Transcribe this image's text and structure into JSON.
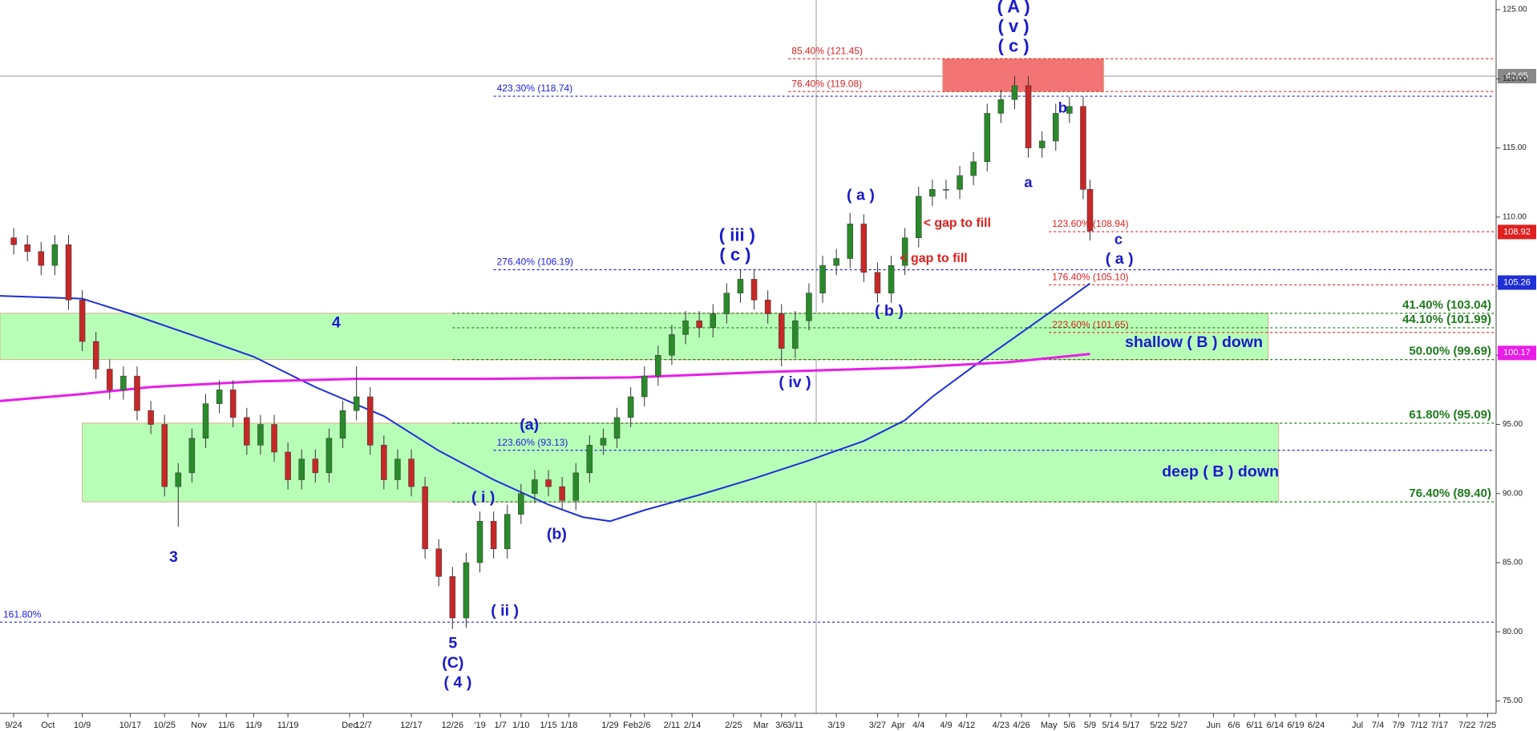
{
  "chart_data": {
    "type": "candlestick",
    "xlim": [
      -2,
      216
    ],
    "ylim": [
      74.1,
      125.7
    ],
    "yticks": [
      {
        "value": 75,
        "label": "75.00"
      },
      {
        "value": 80,
        "label": "80.00"
      },
      {
        "value": 85,
        "label": "85.00"
      },
      {
        "value": 90,
        "label": "90.00"
      },
      {
        "value": 95,
        "label": "95.00"
      },
      {
        "value": 100,
        "label": "100.00"
      },
      {
        "value": 105,
        "label": "105.00"
      },
      {
        "value": 110,
        "label": "110.00"
      },
      {
        "value": 115,
        "label": "115.00"
      },
      {
        "value": 120,
        "label": "120.00"
      },
      {
        "value": 125,
        "label": "125.00"
      }
    ],
    "xticks": [
      {
        "value": 0,
        "label": "9/24"
      },
      {
        "value": 5,
        "label": "Oct"
      },
      {
        "value": 10,
        "label": "10/9"
      },
      {
        "value": 17,
        "label": "10/17"
      },
      {
        "value": 22,
        "label": "10/25"
      },
      {
        "value": 27,
        "label": "Nov"
      },
      {
        "value": 31,
        "label": "11/6"
      },
      {
        "value": 35,
        "label": "11/9"
      },
      {
        "value": 40,
        "label": "11/19"
      },
      {
        "value": 49,
        "label": "Dec"
      },
      {
        "value": 51,
        "label": "12/7"
      },
      {
        "value": 58,
        "label": "12/17"
      },
      {
        "value": 64,
        "label": "12/26"
      },
      {
        "value": 68,
        "label": "'19"
      },
      {
        "value": 71,
        "label": "1/7"
      },
      {
        "value": 74,
        "label": "1/10"
      },
      {
        "value": 78,
        "label": "1/15"
      },
      {
        "value": 81,
        "label": "1/18"
      },
      {
        "value": 87,
        "label": "1/29"
      },
      {
        "value": 90,
        "label": "Feb"
      },
      {
        "value": 92,
        "label": "2/6"
      },
      {
        "value": 96,
        "label": "2/11"
      },
      {
        "value": 99,
        "label": "2/14"
      },
      {
        "value": 105,
        "label": "2/25"
      },
      {
        "value": 109,
        "label": "Mar"
      },
      {
        "value": 112,
        "label": "3/6"
      },
      {
        "value": 114,
        "label": "3/11"
      },
      {
        "value": 120,
        "label": "3/19"
      },
      {
        "value": 126,
        "label": "3/27"
      },
      {
        "value": 129,
        "label": "Apr"
      },
      {
        "value": 132,
        "label": "4/4"
      },
      {
        "value": 136,
        "label": "4/9"
      },
      {
        "value": 139,
        "label": "4/12"
      },
      {
        "value": 144,
        "label": "4/23"
      },
      {
        "value": 147,
        "label": "4/26"
      },
      {
        "value": 151,
        "label": "May"
      },
      {
        "value": 154,
        "label": "5/6"
      },
      {
        "value": 157,
        "label": "5/9"
      },
      {
        "value": 160,
        "label": "5/14"
      },
      {
        "value": 163,
        "label": "5/17"
      },
      {
        "value": 167,
        "label": "5/22"
      },
      {
        "value": 170,
        "label": "5/27"
      },
      {
        "value": 175,
        "label": "Jun"
      },
      {
        "value": 178,
        "label": "6/6"
      },
      {
        "value": 181,
        "label": "6/11"
      },
      {
        "value": 184,
        "label": "6/14"
      },
      {
        "value": 187,
        "label": "6/19"
      },
      {
        "value": 190,
        "label": "6/24"
      },
      {
        "value": 196,
        "label": "Jul"
      },
      {
        "value": 199,
        "label": "7/4"
      },
      {
        "value": 202,
        "label": "7/9"
      },
      {
        "value": 205,
        "label": "7/12"
      },
      {
        "value": 208,
        "label": "7/17"
      },
      {
        "value": 212,
        "label": "7/22"
      },
      {
        "value": 215,
        "label": "7/25"
      }
    ],
    "up_color": "#2a8a2a",
    "down_color": "#c62828",
    "candles": {
      "x": [
        0,
        2,
        4,
        6,
        8,
        10,
        12,
        14,
        16,
        18,
        20,
        22,
        24,
        26,
        28,
        30,
        32,
        34,
        36,
        38,
        40,
        42,
        44,
        46,
        48,
        50,
        52,
        54,
        56,
        58,
        60,
        62,
        64,
        66,
        68,
        70,
        72,
        74,
        76,
        78,
        80,
        82,
        84,
        86,
        88,
        90,
        92,
        94,
        96,
        98,
        100,
        102,
        104,
        106,
        108,
        110,
        112,
        114,
        116,
        118,
        120,
        122,
        124,
        126,
        128,
        130,
        132,
        134,
        136,
        138,
        140,
        142,
        144,
        146,
        148,
        150,
        152,
        154,
        156,
        157
      ],
      "open": [
        108.5,
        108,
        107.5,
        106.5,
        108,
        104,
        101,
        99,
        97.5,
        98.5,
        96,
        95,
        90.5,
        91.5,
        94,
        96.5,
        97.5,
        95.5,
        93.5,
        95,
        93,
        91,
        92.5,
        91.5,
        94,
        96,
        97,
        93.5,
        91,
        92.5,
        90.5,
        86,
        84,
        81,
        85,
        88,
        86,
        88.5,
        90,
        91,
        90.5,
        89.5,
        91.5,
        93.5,
        94,
        95.5,
        97,
        98.5,
        100,
        101.5,
        102.5,
        102,
        103,
        104.5,
        105.5,
        104,
        103,
        100.5,
        102.5,
        104.5,
        106.5,
        107,
        109.5,
        106,
        104.5,
        106.5,
        108.5,
        111.5,
        112,
        112,
        113,
        114,
        117.5,
        118.5,
        119.5,
        115,
        115.5,
        117.5,
        118,
        112
      ],
      "high": [
        109.2,
        108.7,
        108.2,
        108.7,
        108.7,
        104.7,
        101.7,
        99.7,
        99.2,
        99.2,
        96.7,
        95.7,
        92.2,
        94.7,
        97.2,
        98.2,
        98.2,
        96.2,
        95.7,
        95.7,
        93.7,
        93.2,
        93.2,
        94.7,
        96.7,
        99.2,
        97.7,
        94.2,
        93.2,
        93.2,
        91.2,
        86.7,
        84.7,
        85.7,
        88.7,
        88.7,
        89.2,
        90.7,
        91.7,
        91.7,
        91.2,
        92.2,
        94.2,
        94.7,
        96.2,
        97.7,
        99.2,
        100.7,
        102.2,
        103.2,
        103.2,
        103.7,
        105.2,
        106.2,
        106.2,
        104.7,
        103.7,
        103.2,
        105.2,
        107.2,
        107.7,
        110.3,
        110.2,
        106.7,
        107.2,
        109.2,
        112.2,
        112.7,
        112.7,
        113.7,
        114.7,
        118.2,
        119.2,
        120.2,
        120.2,
        116.2,
        118.2,
        118.7,
        118.7,
        112.7
      ],
      "low": [
        107.3,
        106.8,
        105.8,
        105.8,
        103.3,
        100.3,
        98.3,
        96.8,
        96.8,
        95.3,
        94.3,
        89.8,
        87.6,
        90.8,
        93.3,
        95.8,
        94.8,
        92.8,
        92.8,
        92.3,
        90.3,
        90.3,
        90.8,
        90.8,
        93.3,
        95.3,
        92.8,
        90.3,
        90.3,
        89.8,
        85.3,
        83.3,
        80.2,
        80.3,
        84.3,
        85.3,
        85.3,
        87.8,
        89.3,
        89.8,
        88.8,
        88.8,
        90.8,
        92.8,
        93.3,
        94.8,
        96.3,
        97.8,
        99.3,
        100.8,
        101.3,
        101.3,
        102.3,
        103.8,
        103.3,
        102.3,
        99.2,
        99.8,
        101.8,
        103.8,
        105.8,
        106.3,
        105.3,
        103.8,
        103.8,
        105.8,
        107.8,
        110.8,
        111.3,
        111.3,
        112.3,
        113.3,
        116.8,
        117.8,
        114.3,
        114.3,
        114.8,
        116.8,
        111.3,
        108.3
      ],
      "close": [
        108,
        107.5,
        106.5,
        108,
        104,
        101,
        99,
        97.5,
        98.5,
        96,
        95,
        90.5,
        91.5,
        94,
        96.5,
        97.5,
        95.5,
        93.5,
        95,
        93,
        91,
        92.5,
        91.5,
        94,
        96,
        97,
        93.5,
        91,
        92.5,
        90.5,
        86,
        84,
        81,
        85,
        88,
        86,
        88.5,
        90,
        91,
        90.5,
        89.5,
        91.5,
        93.5,
        94,
        95.5,
        97,
        98.5,
        100,
        101.5,
        102.5,
        102,
        103,
        104.5,
        105.5,
        104,
        103,
        100.5,
        102.5,
        104.5,
        106.5,
        107,
        109.5,
        106,
        104.5,
        106.5,
        108.5,
        111.5,
        112,
        112,
        113,
        114,
        117.5,
        118.5,
        119.5,
        115,
        115.5,
        117.5,
        118,
        112,
        109
      ]
    },
    "lines": [
      {
        "color": "#1f2fd6",
        "x": [
          -2,
          10,
          17,
          27,
          35,
          44,
          54,
          62,
          70,
          78,
          83,
          87,
          92,
          100,
          108,
          116,
          124,
          130,
          134,
          140,
          146,
          152,
          157
        ],
        "values": [
          104.3,
          104.1,
          103,
          101.3,
          99.9,
          97.7,
          95.6,
          93.1,
          91,
          89.2,
          88.3,
          88,
          88.8,
          89.9,
          91.1,
          92.4,
          93.8,
          95.3,
          97,
          99.2,
          101.3,
          103.4,
          105.2
        ]
      },
      {
        "color": "#e81ee8",
        "x": [
          -2,
          10,
          20,
          35,
          50,
          70,
          90,
          110,
          130,
          145,
          157
        ],
        "values": [
          96.7,
          97.2,
          97.7,
          98.1,
          98.3,
          98.3,
          98.4,
          98.8,
          99.1,
          99.5,
          100.1
        ]
      }
    ],
    "zones": [
      {
        "x": [
          -2,
          183
        ],
        "y": [
          99.69,
          103.04
        ],
        "color": "#b3ffb3"
      },
      {
        "x": [
          10,
          184.5
        ],
        "y": [
          89.4,
          95.09
        ],
        "color": "#b3ffb3"
      },
      {
        "x": [
          135.5,
          159
        ],
        "y": [
          119.08,
          121.45
        ],
        "color": "#f26d6d"
      }
    ],
    "levels": [
      {
        "label": "85.40% (121.45)",
        "value": 121.45,
        "color": "#e02020",
        "x_start": 113,
        "label_side": "left"
      },
      {
        "label": "76.40% (119.08)",
        "value": 119.08,
        "color": "#e02020",
        "x_start": 113,
        "label_side": "left"
      },
      {
        "label": "423.30% (118.74)",
        "value": 118.74,
        "color": "#2020e0",
        "x_start": 70,
        "label_side": "left"
      },
      {
        "label": "276.40% (106.19)",
        "value": 106.19,
        "color": "#2020e0",
        "x_start": 70,
        "label_side": "left"
      },
      {
        "label": "123.60% (108.94)",
        "value": 108.94,
        "color": "#e02020",
        "x_start": 151,
        "label_side": "left"
      },
      {
        "label": "176.40% (105.10)",
        "value": 105.1,
        "color": "#e02020",
        "x_start": 151,
        "label_side": "left"
      },
      {
        "label": "223.60% (101.65)",
        "value": 101.65,
        "color": "#e02020",
        "x_start": 151,
        "label_side": "left"
      },
      {
        "label": "123.60% (93.13)",
        "value": 93.13,
        "color": "#2020e0",
        "x_start": 70,
        "label_side": "left"
      },
      {
        "label": "161.80%",
        "value": 80.7,
        "color": "#2020e0",
        "x_start": -2,
        "label_side": "left"
      },
      {
        "label": "41.40% (103.04)",
        "value": 103.04,
        "color": "#1f7a1f",
        "x_start": 64,
        "label_side": "right"
      },
      {
        "label": "44.10% (101.99)",
        "value": 101.99,
        "color": "#1f7a1f",
        "x_start": 64,
        "label_side": "right"
      },
      {
        "label": "50.00% (99.69)",
        "value": 99.69,
        "color": "#1f7a1f",
        "x_start": 64,
        "label_side": "right"
      },
      {
        "label": "61.80% (95.09)",
        "value": 95.09,
        "color": "#1f7a1f",
        "x_start": 64,
        "label_side": "right"
      },
      {
        "label": "76.40% (89.40)",
        "value": 89.4,
        "color": "#1f7a1f",
        "x_start": 64,
        "label_side": "right"
      }
    ],
    "price_labels": [
      {
        "value": 108.92,
        "color": "#e02020"
      },
      {
        "value": 105.26,
        "color": "#1f2fd6"
      },
      {
        "value": 100.17,
        "color": "#e81ee8"
      }
    ],
    "crosshair_label": "42.65",
    "annotations": [
      {
        "text": "( A )",
        "color": "#1a1acc"
      },
      {
        "text": "( v )",
        "color": "#1a1acc"
      },
      {
        "text": "( c )",
        "color": "#1a1acc"
      },
      {
        "text": "( a )",
        "color": "#1a1acc"
      },
      {
        "text": "( iii )",
        "color": "#1a1acc"
      },
      {
        "text": "( c )",
        "color": "#1a1acc"
      },
      {
        "text": "< gap to fill",
        "color": "#e02020"
      },
      {
        "text": "< gap to fill",
        "color": "#e02020"
      },
      {
        "text": "( b )",
        "color": "#1a1acc"
      },
      {
        "text": "( iv )",
        "color": "#1a1acc"
      },
      {
        "text": "b",
        "color": "#1a1acc"
      },
      {
        "text": "a",
        "color": "#1a1acc"
      },
      {
        "text": "c",
        "color": "#1a1acc"
      },
      {
        "text": "( a )",
        "color": "#1a1acc"
      },
      {
        "text": "4",
        "color": "#1a1acc"
      },
      {
        "text": "3",
        "color": "#1a1acc"
      },
      {
        "text": "(a)",
        "color": "#1a1acc"
      },
      {
        "text": "( i )",
        "color": "#1a1acc"
      },
      {
        "text": "(b)",
        "color": "#1a1acc"
      },
      {
        "text": "( ii )",
        "color": "#1a1acc"
      },
      {
        "text": "5",
        "color": "#1a1acc"
      },
      {
        "text": "(C)",
        "color": "#1a1acc"
      },
      {
        "text": "( 4 )",
        "color": "#1a1acc"
      },
      {
        "text": "shallow ( B ) down",
        "color": "#1a1acc"
      },
      {
        "text": "deep ( B ) down",
        "color": "#1a1acc"
      }
    ]
  }
}
